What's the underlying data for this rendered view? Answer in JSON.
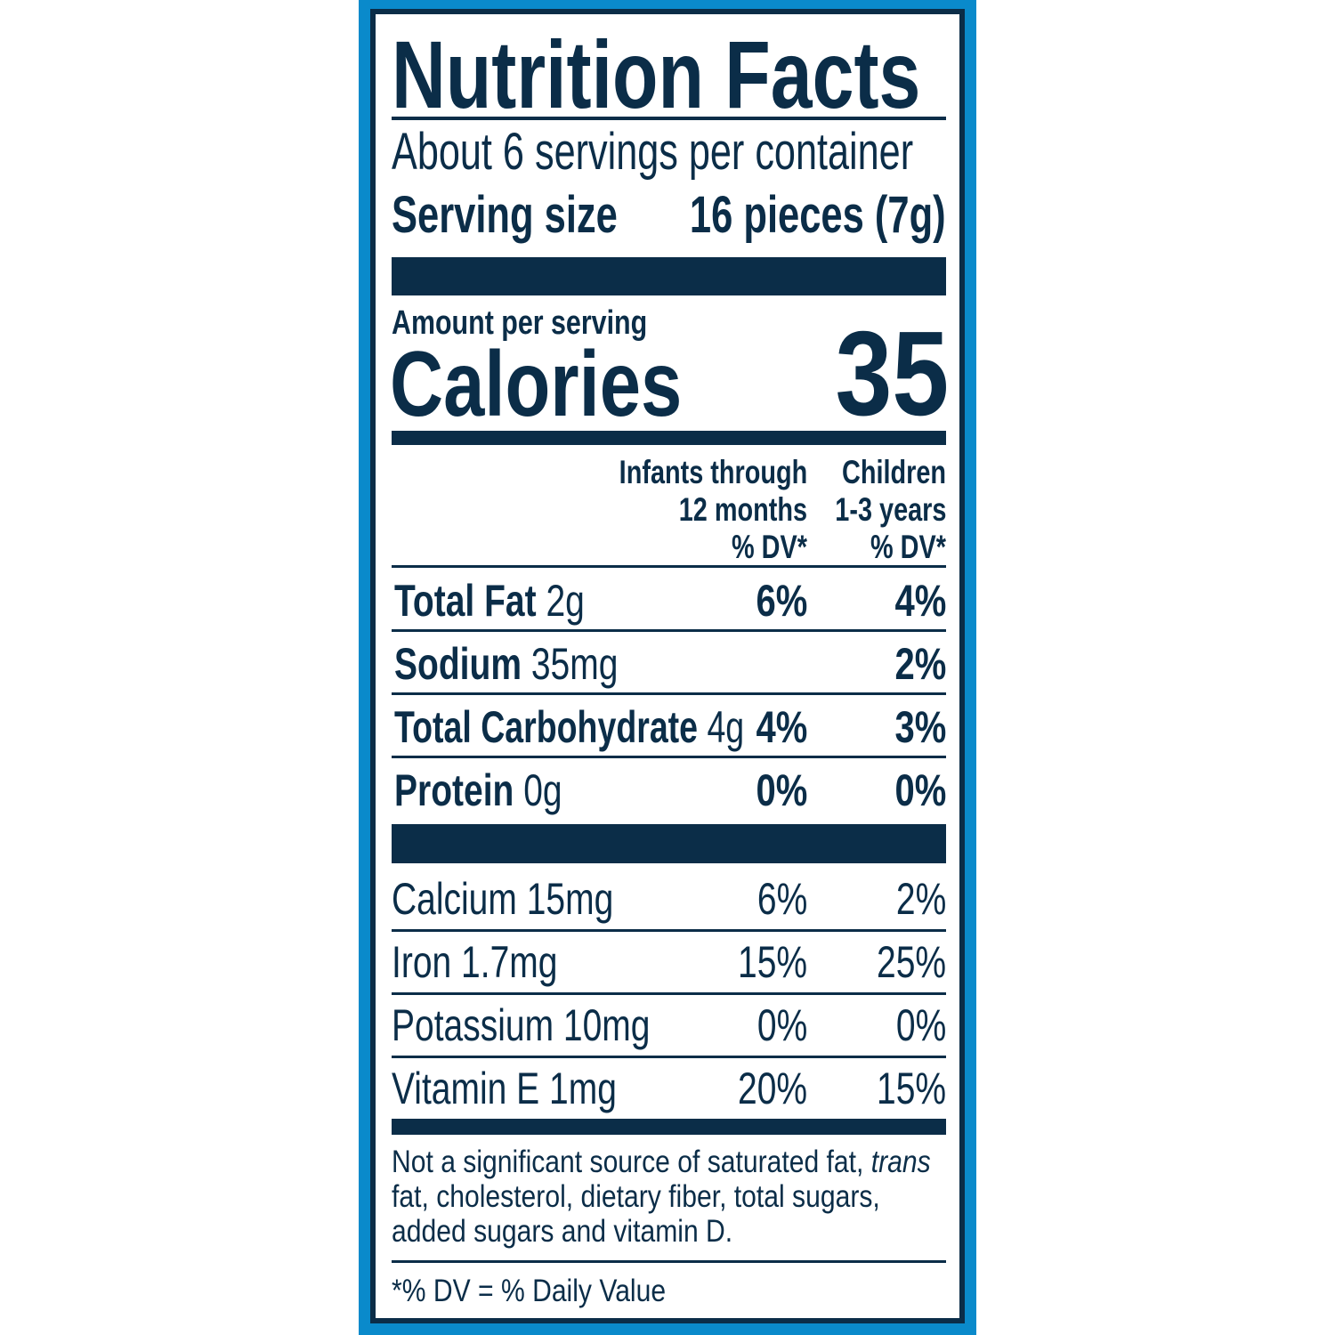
{
  "colors": {
    "frame": "#0a8acb",
    "ink": "#0b2d48"
  },
  "title": "Nutrition Facts",
  "servings": "About 6 servings per container",
  "serving_size": {
    "label": "Serving size",
    "value": "16 pieces (7g)"
  },
  "amount_per_serving": "Amount per serving",
  "calories": {
    "label": "Calories",
    "value": "35"
  },
  "columns": [
    {
      "lines": [
        "Infants through",
        "12 months",
        "% DV*"
      ]
    },
    {
      "lines": [
        "Children",
        "1-3 years",
        "% DV*"
      ]
    }
  ],
  "nutrients": [
    {
      "name": "Total Fat",
      "amount": "2g",
      "dv_infants": "6%",
      "dv_children": "4%"
    },
    {
      "name": "Sodium",
      "amount": "35mg",
      "dv_infants": "",
      "dv_children": "2%"
    },
    {
      "name": "Total Carbohydrate",
      "amount": "4g",
      "dv_infants": "4%",
      "dv_children": "3%"
    },
    {
      "name": "Protein",
      "amount": "0g",
      "dv_infants": "0%",
      "dv_children": "0%"
    }
  ],
  "micronutrients": [
    {
      "label": "Calcium 15mg",
      "dv_infants": "6%",
      "dv_children": "2%"
    },
    {
      "label": "Iron 1.7mg",
      "dv_infants": "15%",
      "dv_children": "25%"
    },
    {
      "label": "Potassium 10mg",
      "dv_infants": "0%",
      "dv_children": "0%"
    },
    {
      "label": "Vitamin E 1mg",
      "dv_infants": "20%",
      "dv_children": "15%"
    }
  ],
  "footnote": {
    "pre": "Not a significant source of saturated fat, ",
    "italic": "trans",
    "line2": "fat, cholesterol, dietary fiber, total sugars,",
    "line3": "added sugars and vitamin D."
  },
  "dv_note": "*% DV = % Daily Value"
}
